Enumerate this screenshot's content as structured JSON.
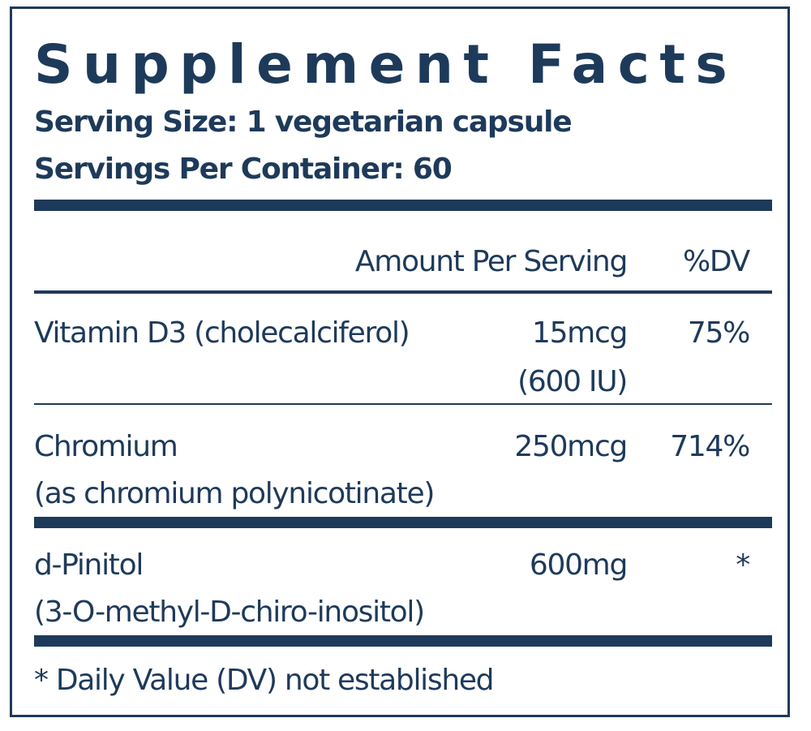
{
  "title": "Supplement Facts",
  "serving_size": "Serving Size: 1 vegetarian capsule",
  "servings_per_container": "Servings Per Container: 60",
  "header": {
    "amount": "Amount Per Serving",
    "dv": "%DV"
  },
  "rows": [
    {
      "name": "Vitamin D3 (cholecalciferol)",
      "name2": "",
      "amount": "15mcg",
      "amount2": "(600 IU)",
      "dv": "75%"
    },
    {
      "name": "Chromium",
      "name2": "(as chromium polynicotinate)",
      "amount": "250mcg",
      "amount2": "",
      "dv": "714%"
    },
    {
      "name": "d-Pinitol",
      "name2": "(3-O-methyl-D-chiro-inositol)",
      "amount": "600mg",
      "amount2": "",
      "dv": "*"
    }
  ],
  "footnote": "* Daily Value (DV) not established",
  "colors": {
    "ink": "#1e3a5a",
    "background": "#ffffff"
  }
}
